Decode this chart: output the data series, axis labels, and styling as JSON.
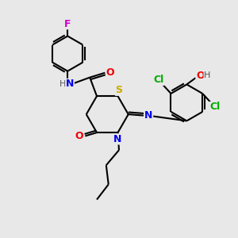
{
  "background_color": "#e8e8e8",
  "bond_color": "#000000",
  "atom_colors": {
    "N": "#0000ee",
    "O": "#ee0000",
    "S": "#ccaa00",
    "Cl": "#00aa00",
    "F": "#cc00cc",
    "H": "#555555",
    "C": "#000000"
  },
  "figsize": [
    3.0,
    3.0
  ],
  "dpi": 100
}
